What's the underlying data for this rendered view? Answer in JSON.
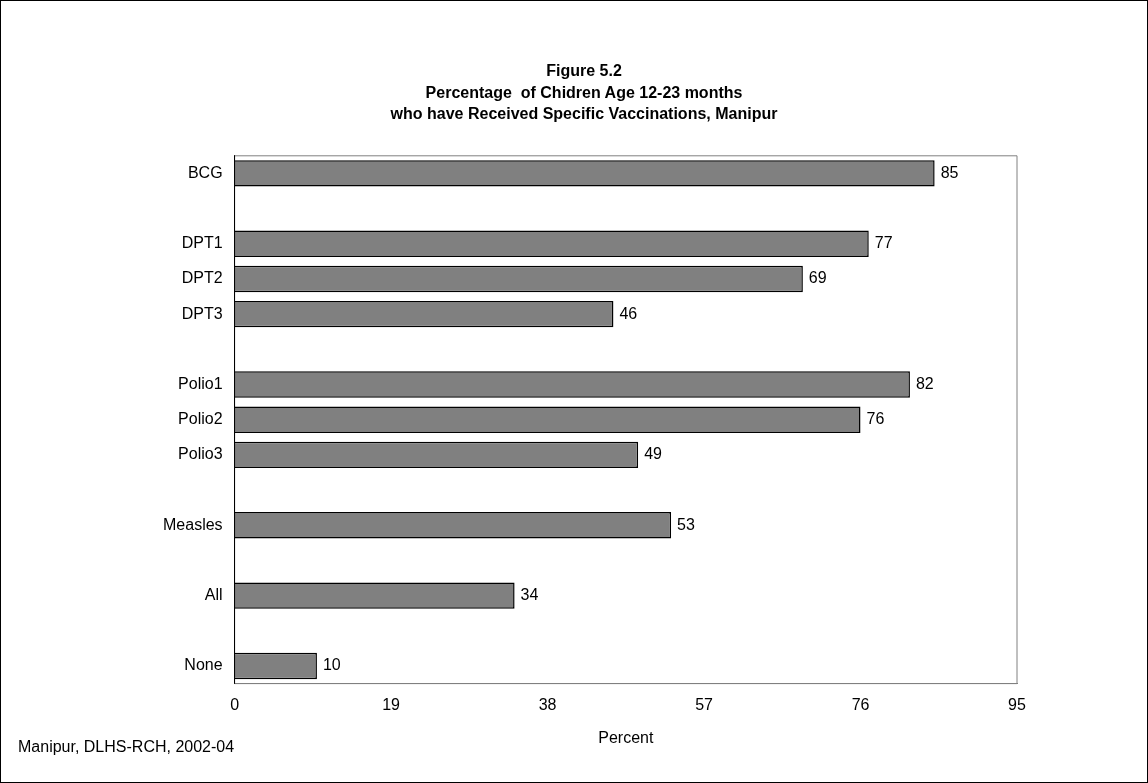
{
  "chart_data": {
    "type": "bar",
    "orientation": "horizontal",
    "title": "Figure 5.2\nPercentage  of Chidren Age 12-23 months\nwho have Received Specific Vaccinations, Manipur",
    "categories": [
      "BCG",
      null,
      "DPT1",
      "DPT2",
      "DPT3",
      null,
      "Polio1",
      "Polio2",
      "Polio3",
      null,
      "Measles",
      null,
      "All",
      null,
      "None"
    ],
    "values": [
      85,
      null,
      77,
      69,
      46,
      null,
      82,
      76,
      49,
      null,
      53,
      null,
      34,
      null,
      10
    ],
    "color": "#808080",
    "xlim": [
      0,
      95
    ],
    "xticks": [
      0,
      19,
      38,
      57,
      76,
      95
    ],
    "xlabel": "Percent",
    "grid": false,
    "legend": false,
    "data_labels": true,
    "annotations": [
      "Manipur, DLHS-RCH, 2002-04"
    ]
  }
}
